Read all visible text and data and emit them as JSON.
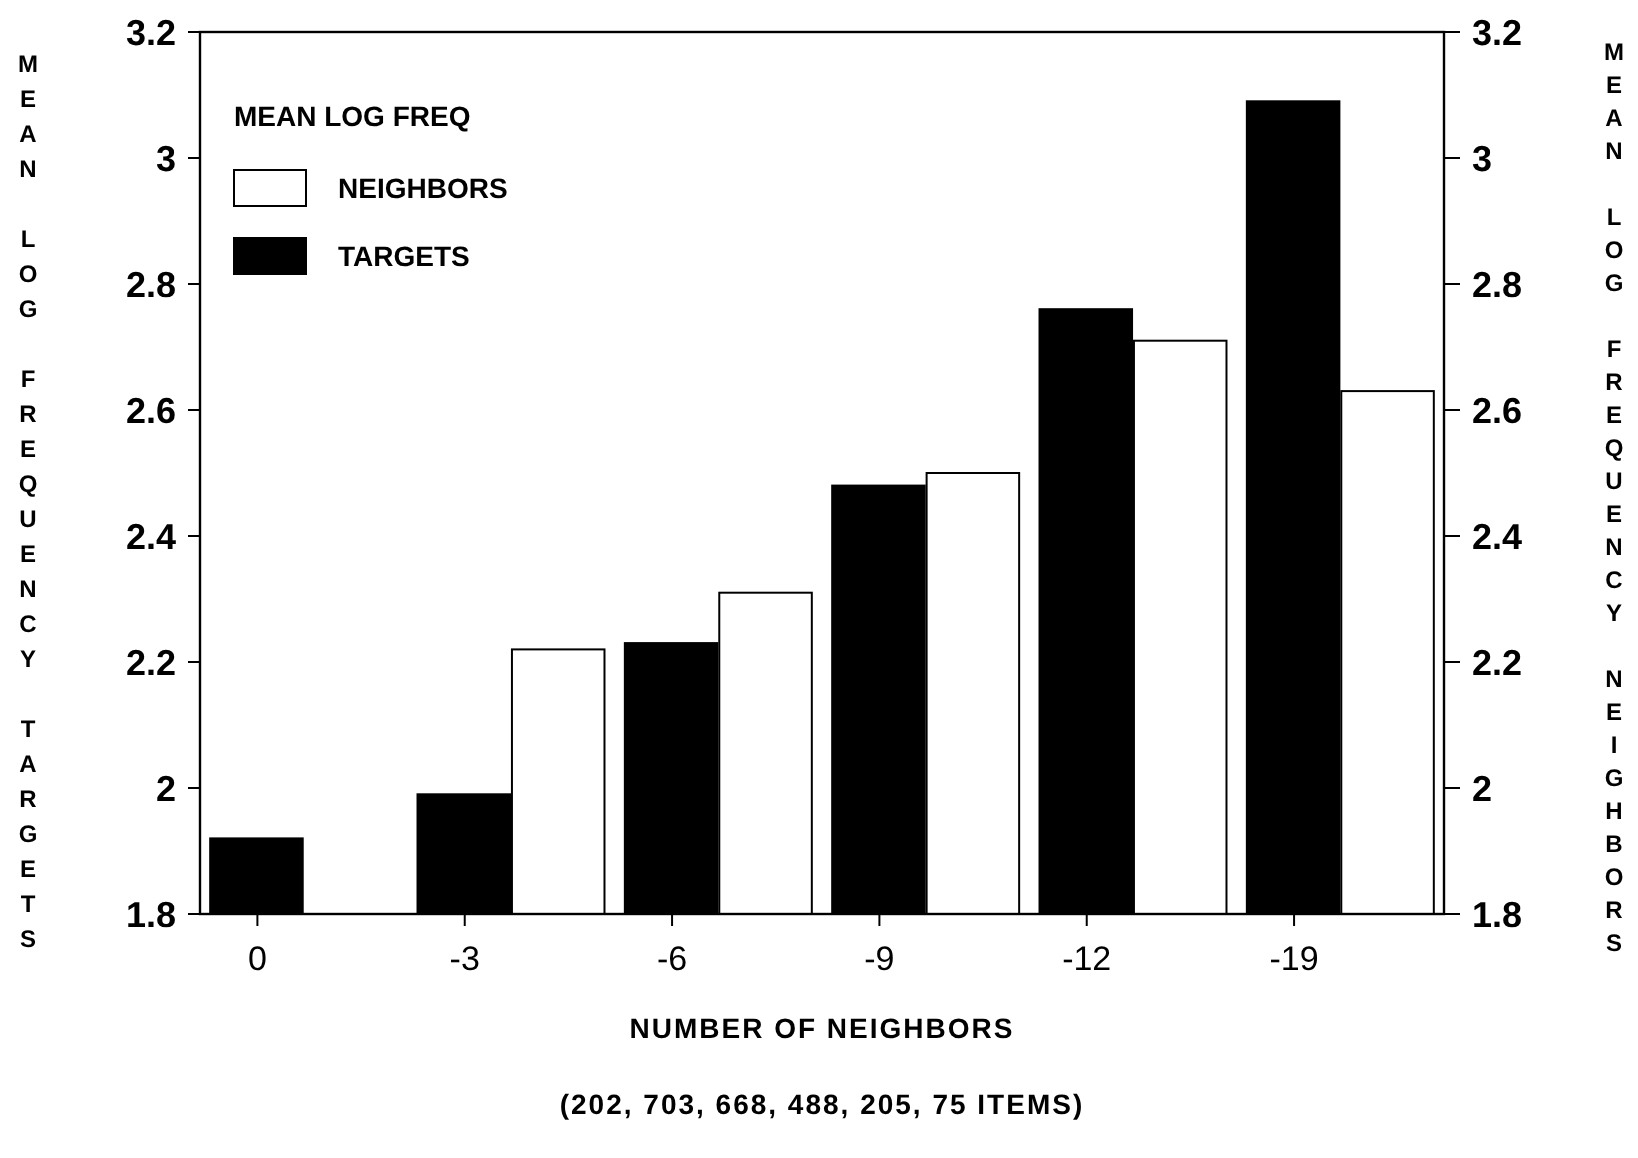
{
  "chart_data": {
    "type": "bar",
    "categories": [
      "0",
      "-3",
      "-6",
      "-9",
      "-12",
      "-19"
    ],
    "xlabel": "NUMBER OF NEIGHBORS",
    "ylabel": "MEAN LOG FREQUENCY TARGETS",
    "y2label": "MEAN LOG FREQUENCY NEIGHBORS",
    "legend_title": "MEAN LOG FREQ",
    "legend": "top left",
    "ylim": [
      1.8,
      3.2
    ],
    "yticks": [
      1.8,
      2,
      2.2,
      2.4,
      2.6,
      2.8,
      3,
      3.2
    ],
    "y2lim": [
      1.8,
      3.2
    ],
    "y2ticks": [
      1.8,
      2,
      2.2,
      2.4,
      2.6,
      2.8,
      3,
      3.2
    ],
    "series": [
      {
        "name": "TARGETS",
        "color": "#000000",
        "values": [
          1.92,
          1.99,
          2.23,
          2.48,
          2.76,
          3.09
        ]
      },
      {
        "name": "NEIGHBORS",
        "color": "#ffffff",
        "values": [
          null,
          2.22,
          2.31,
          2.5,
          2.71,
          2.63
        ]
      }
    ],
    "annotations": [
      "(202, 703, 668, 488, 205, 75 ITEMS)"
    ]
  }
}
